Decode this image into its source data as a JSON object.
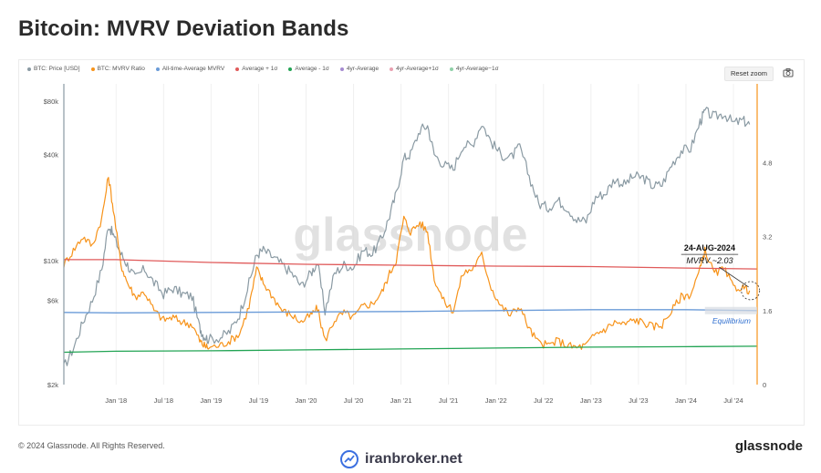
{
  "page": {
    "title": "Bitcoin: MVRV Deviation Bands",
    "copyright": "© 2024 Glassnode. All Rights Reserved.",
    "brand": "glassnode",
    "watermark_site": "iranbroker.net",
    "watermark_chart": "glassnode"
  },
  "toolbar": {
    "reset_zoom_label": "Reset zoom",
    "screenshot_icon": "camera-icon"
  },
  "legend": [
    {
      "label": "BTC: Price [USD]",
      "color": "#8a9aa3"
    },
    {
      "label": "BTC: MVRV Ratio",
      "color": "#f7931a"
    },
    {
      "label": "All-time-Average MVRV",
      "color": "#6a9bd8"
    },
    {
      "label": "Average + 1σ",
      "color": "#e05a5a"
    },
    {
      "label": "Average - 1σ",
      "color": "#22a454"
    },
    {
      "label": "4yr-Average",
      "color": "#a58bd0"
    },
    {
      "label": "4yr-Average+1σ",
      "color": "#e9a0b0"
    },
    {
      "label": "4yr-Average−1σ",
      "color": "#8fd0a8"
    }
  ],
  "chart_data": {
    "type": "line",
    "title": "Bitcoin: MVRV Deviation Bands",
    "x_tick_labels": [
      "Jan '18",
      "Jul '18",
      "Jan '19",
      "Jul '19",
      "Jan '20",
      "Jul '20",
      "Jan '21",
      "Jul '21",
      "Jan '22",
      "Jul '22",
      "Jan '23",
      "Jul '23",
      "Jan '24",
      "Jul '24"
    ],
    "x_tick_positions": [
      2018.0,
      2018.5,
      2019.0,
      2019.5,
      2020.0,
      2020.5,
      2021.0,
      2021.5,
      2022.0,
      2022.5,
      2023.0,
      2023.5,
      2024.0,
      2024.5
    ],
    "xlim": [
      2017.45,
      2024.75
    ],
    "left_axis": {
      "scale": "log",
      "ylim": [
        2000,
        100000
      ],
      "tick_labels": [
        "$2k",
        "$6k",
        "$10k",
        "$40k",
        "$80k"
      ],
      "tick_values": [
        2000,
        6000,
        10000,
        40000,
        80000
      ]
    },
    "right_axis": {
      "scale": "linear",
      "ylim": [
        0,
        6.5
      ],
      "tick_labels": [
        "0",
        "1.6",
        "3.2",
        "4.8"
      ],
      "tick_values": [
        0,
        1.6,
        3.2,
        4.8
      ]
    },
    "series": [
      {
        "name": "BTC: Price [USD]",
        "axis": "left",
        "color": "#8a9aa3",
        "x": [
          2017.45,
          2017.55,
          2017.65,
          2017.75,
          2017.85,
          2017.92,
          2017.97,
          2018.05,
          2018.12,
          2018.2,
          2018.3,
          2018.4,
          2018.5,
          2018.6,
          2018.7,
          2018.8,
          2018.88,
          2018.92,
          2018.97,
          2019.1,
          2019.2,
          2019.3,
          2019.4,
          2019.48,
          2019.55,
          2019.65,
          2019.75,
          2019.85,
          2019.95,
          2020.05,
          2020.12,
          2020.2,
          2020.3,
          2020.4,
          2020.5,
          2020.6,
          2020.7,
          2020.8,
          2020.88,
          2020.95,
          2021.03,
          2021.1,
          2021.2,
          2021.28,
          2021.35,
          2021.45,
          2021.55,
          2021.65,
          2021.75,
          2021.85,
          2021.95,
          2022.05,
          2022.15,
          2022.25,
          2022.35,
          2022.45,
          2022.55,
          2022.65,
          2022.75,
          2022.85,
          2022.95,
          2023.05,
          2023.15,
          2023.25,
          2023.35,
          2023.45,
          2023.55,
          2023.65,
          2023.75,
          2023.85,
          2023.95,
          2024.05,
          2024.15,
          2024.2,
          2024.3,
          2024.4,
          2024.5,
          2024.6,
          2024.67
        ],
        "y": [
          2500,
          3200,
          4500,
          6000,
          9000,
          16000,
          14000,
          11000,
          9500,
          8000,
          9000,
          7500,
          6500,
          7000,
          6500,
          6300,
          4200,
          3800,
          3600,
          3700,
          4000,
          5000,
          7500,
          10800,
          11500,
          10500,
          9500,
          8500,
          7200,
          8500,
          9800,
          5200,
          8500,
          9500,
          9200,
          11500,
          11000,
          13500,
          18000,
          24000,
          38000,
          40000,
          55000,
          58000,
          40000,
          35000,
          33000,
          45000,
          45000,
          60000,
          47000,
          40000,
          38000,
          44000,
          30000,
          21000,
          20000,
          22000,
          20000,
          17000,
          16800,
          23000,
          24000,
          29000,
          27000,
          30000,
          29500,
          26500,
          27000,
          35000,
          42000,
          43000,
          61000,
          70000,
          65000,
          68000,
          60000,
          62000,
          59000
        ]
      },
      {
        "name": "BTC: MVRV Ratio",
        "axis": "right",
        "color": "#f7931a",
        "x": [
          2017.45,
          2017.55,
          2017.65,
          2017.75,
          2017.85,
          2017.92,
          2017.97,
          2018.05,
          2018.12,
          2018.2,
          2018.3,
          2018.4,
          2018.5,
          2018.6,
          2018.7,
          2018.8,
          2018.88,
          2018.92,
          2018.97,
          2019.1,
          2019.2,
          2019.3,
          2019.4,
          2019.48,
          2019.55,
          2019.65,
          2019.75,
          2019.85,
          2019.95,
          2020.05,
          2020.12,
          2020.2,
          2020.3,
          2020.4,
          2020.5,
          2020.6,
          2020.7,
          2020.8,
          2020.88,
          2020.95,
          2021.03,
          2021.1,
          2021.2,
          2021.28,
          2021.35,
          2021.45,
          2021.55,
          2021.65,
          2021.75,
          2021.85,
          2021.95,
          2022.05,
          2022.15,
          2022.25,
          2022.35,
          2022.45,
          2022.55,
          2022.65,
          2022.75,
          2022.85,
          2022.95,
          2023.05,
          2023.15,
          2023.25,
          2023.35,
          2023.45,
          2023.55,
          2023.65,
          2023.75,
          2023.85,
          2023.95,
          2024.05,
          2024.15,
          2024.2,
          2024.3,
          2024.4,
          2024.5,
          2024.6,
          2024.67
        ],
        "y": [
          2.6,
          2.9,
          3.2,
          3.0,
          3.6,
          4.5,
          3.8,
          2.6,
          2.2,
          1.9,
          2.0,
          1.6,
          1.4,
          1.45,
          1.35,
          1.3,
          0.95,
          0.85,
          0.8,
          0.85,
          0.95,
          1.1,
          1.7,
          2.5,
          2.2,
          1.9,
          1.6,
          1.5,
          1.35,
          1.5,
          1.65,
          0.95,
          1.4,
          1.55,
          1.45,
          1.7,
          1.75,
          2.0,
          2.4,
          2.7,
          3.6,
          3.3,
          3.5,
          3.3,
          2.3,
          1.8,
          1.6,
          2.4,
          2.5,
          2.8,
          2.1,
          1.7,
          1.5,
          1.7,
          1.2,
          0.9,
          0.85,
          0.95,
          0.85,
          0.8,
          0.85,
          1.1,
          1.2,
          1.35,
          1.3,
          1.4,
          1.35,
          1.25,
          1.3,
          1.6,
          1.9,
          1.95,
          2.5,
          2.9,
          2.4,
          2.5,
          2.1,
          2.1,
          2.03
        ]
      },
      {
        "name": "All-time-Average MVRV",
        "axis": "right",
        "color": "#6a9bd8",
        "x": [
          2017.45,
          2018.0,
          2019.0,
          2020.0,
          2021.0,
          2022.0,
          2023.0,
          2024.0,
          2024.75
        ],
        "y": [
          1.56,
          1.55,
          1.56,
          1.57,
          1.58,
          1.6,
          1.62,
          1.62,
          1.6
        ]
      },
      {
        "name": "Average + 1σ",
        "axis": "right",
        "color": "#e05a5a",
        "x": [
          2017.45,
          2018.0,
          2019.0,
          2020.0,
          2021.0,
          2022.0,
          2023.0,
          2024.0,
          2024.75
        ],
        "y": [
          2.7,
          2.7,
          2.64,
          2.6,
          2.58,
          2.56,
          2.55,
          2.52,
          2.5
        ]
      },
      {
        "name": "Average - 1σ",
        "axis": "right",
        "color": "#22a454",
        "x": [
          2017.45,
          2018.0,
          2019.0,
          2020.0,
          2021.0,
          2022.0,
          2023.0,
          2024.0,
          2024.75
        ],
        "y": [
          0.7,
          0.72,
          0.73,
          0.75,
          0.77,
          0.79,
          0.81,
          0.82,
          0.83
        ]
      }
    ],
    "annotations": [
      {
        "text": "24-AUG-2024",
        "bold": true
      },
      {
        "text": "MVRV ~2.03",
        "italic": true
      },
      {
        "text": "Equilibrium",
        "italic": true,
        "color": "#2f6fd0"
      }
    ],
    "legend_placement": "top-left",
    "grid": "vertical"
  }
}
